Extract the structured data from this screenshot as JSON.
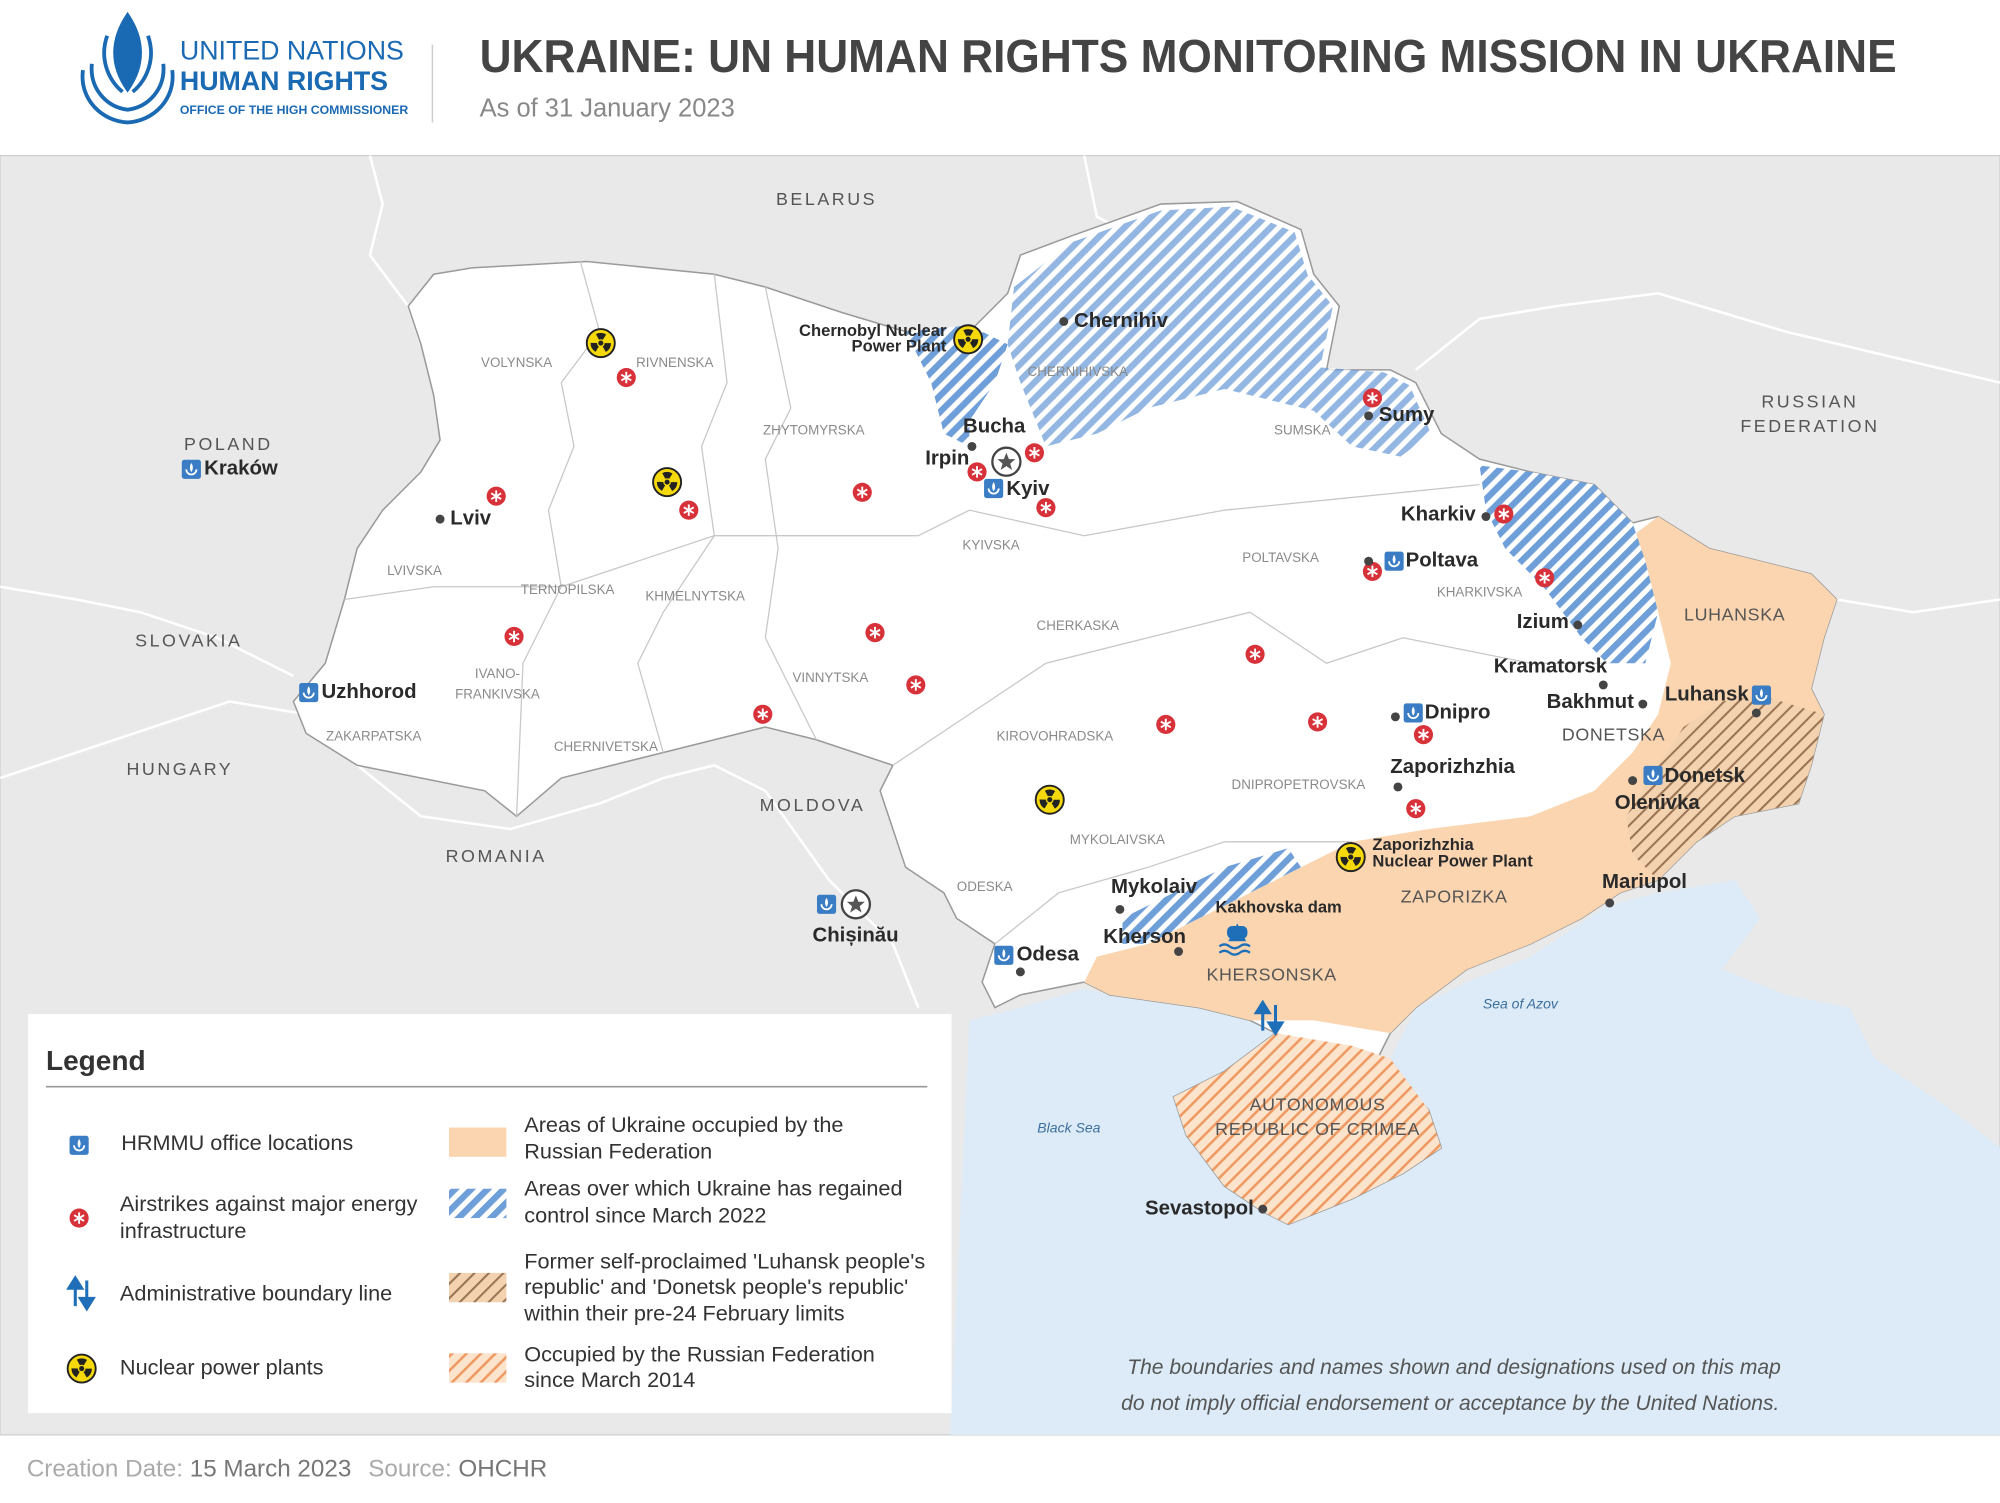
{
  "header": {
    "logo": [
      "UNITED NATIONS",
      "HUMAN RIGHTS",
      "OFFICE OF THE HIGH COMMISSIONER"
    ],
    "title": "UKRAINE: UN HUMAN RIGHTS MONITORING MISSION IN UKRAINE",
    "subtitle": "As of 31 January 2023"
  },
  "map": {
    "countries": [
      [
        "BELARUS"
      ],
      [
        "POLAND"
      ],
      [
        "SLOVAKIA"
      ],
      [
        "HUNGARY"
      ],
      [
        "ROMANIA"
      ],
      [
        "MOLDOVA"
      ],
      [
        "RUSSIAN",
        "FEDERATION"
      ]
    ],
    "regions": [
      [
        "VOLYNSKA"
      ],
      [
        "RIVNENSKA"
      ],
      [
        "ZHYTOMYRSKA"
      ],
      [
        "CHERNIHIVSKA"
      ],
      [
        "SUMSKA"
      ],
      [
        "KYIVSKA"
      ],
      [
        "POLTAVSKA"
      ],
      [
        "KHARKIVSKA"
      ],
      [
        "LUHANSKA"
      ],
      [
        "LVIVSKA"
      ],
      [
        "TERNOPILSKA"
      ],
      [
        "KHMELNYTSKA"
      ],
      [
        "CHERKASKA"
      ],
      [
        "IVANO-",
        "FRANKIVSKA"
      ],
      [
        "VINNYTSKA"
      ],
      [
        "ZAKARPATSKA"
      ],
      [
        "CHERNIVETSKA"
      ],
      [
        "KIROVOHRADSKA"
      ],
      [
        "DNIPROPETROVSKA"
      ],
      [
        "DONETSKA"
      ],
      [
        "MYKOLAIVSKA"
      ],
      [
        "ODESKA"
      ],
      [
        "ZAPORIZKA"
      ],
      [
        "KHERSONSKA"
      ],
      [
        "AUTONOMOUS",
        "REPUBLIC OF CRIMEA"
      ]
    ],
    "seas": [
      "Sea of Azov",
      "Black Sea"
    ],
    "cities": [
      "Kraków",
      "Lviv",
      "Uzhhorod",
      "Chernihiv",
      "Bucha",
      "Irpin",
      "Kyiv",
      "Sumy",
      "Kharkiv",
      "Poltava",
      "Izium",
      "Kramatorsk",
      "Bakhmut",
      "Luhansk",
      "Dnipro",
      "Zaporizhzhia",
      "Donetsk",
      "Olenivka",
      "Mariupol",
      "Mykolaiv",
      "Kherson",
      "Odesa",
      "Chișinău",
      "Sevastopol"
    ],
    "facilities": [
      [
        "Chernobyl Nuclear",
        "Power Plant"
      ],
      [
        "Zaporizhzhia",
        "Nuclear Power Plant"
      ],
      [
        "Kakhovska dam"
      ]
    ]
  },
  "legend": {
    "title": "Legend",
    "symbols": [
      [
        "HRMMU office locations"
      ],
      [
        "Airstrikes against major energy",
        "infrastructure"
      ],
      [
        "Administrative boundary line"
      ],
      [
        "Nuclear power plants"
      ]
    ],
    "areas": [
      [
        "Areas of Ukraine occupied by the",
        "Russian Federation"
      ],
      [
        "Areas over which Ukraine has regained",
        "control since March 2022"
      ],
      [
        "Former self-proclaimed 'Luhansk people's",
        "republic' and 'Donetsk people's republic'",
        "within their pre-24 February limits"
      ],
      [
        "Occupied by the Russian Federation",
        "since March 2014"
      ]
    ]
  },
  "disclaimer": [
    "The boundaries and names shown and designations used on this map",
    "do not imply official endorsement or acceptance by the United Nations."
  ],
  "footer": {
    "creation_label": "Creation Date:",
    "creation_date": "15 March 2023",
    "source_label": "Source:",
    "source": "OHCHR"
  }
}
